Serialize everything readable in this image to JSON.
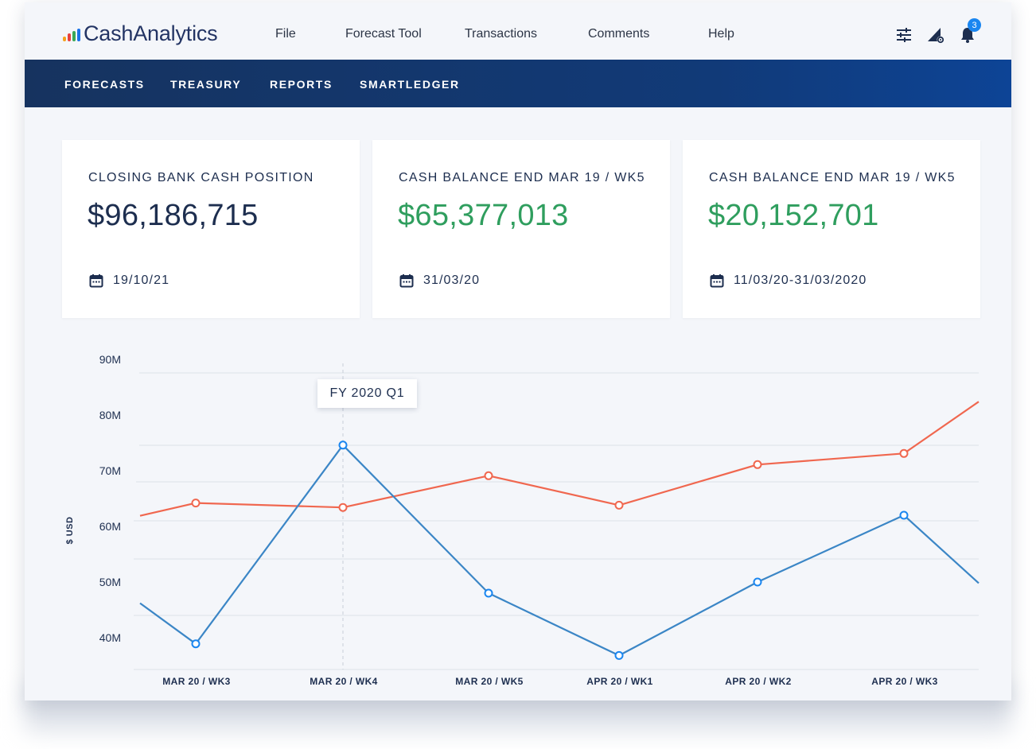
{
  "app": {
    "brand": "CashAnalytics",
    "brand_colors": [
      "#f4a21d",
      "#e8413c",
      "#3aa856",
      "#1a73e8"
    ]
  },
  "nav": {
    "items": [
      {
        "label": "File"
      },
      {
        "label": "Forecast Tool"
      },
      {
        "label": "Transactions"
      },
      {
        "label": "Comments"
      },
      {
        "label": "Help"
      }
    ]
  },
  "toolbar": {
    "icons": [
      "sliders-icon",
      "rule-settings-icon",
      "bell-icon"
    ],
    "notification_count": "3"
  },
  "subnav": {
    "items": [
      {
        "label": "FORECASTS"
      },
      {
        "label": "TREASURY"
      },
      {
        "label": "REPORTS"
      },
      {
        "label": "SMARTLEDGER"
      }
    ]
  },
  "cards": [
    {
      "label": "CLOSING BANK CASH POSITION",
      "value": "$96,186,715",
      "date": "19/10/21",
      "value_color": "#1d2e4f"
    },
    {
      "label": "CASH BALANCE END MAR 19 / WK5",
      "value": "$65,377,013",
      "date": "31/03/20",
      "value_color": "#2f9e5e"
    },
    {
      "label": "CASH BALANCE END MAR 19 / WK5",
      "value": "$20,152,701",
      "date": "11/03/20-31/03/2020",
      "value_color": "#2f9e5e"
    }
  ],
  "chart_data": {
    "type": "line",
    "ylabel": "$ USD",
    "y_ticks": [
      "90M",
      "80M",
      "70M",
      "60M",
      "50M",
      "40M"
    ],
    "categories": [
      "MAR 20 / WK3",
      "MAR 20 / WK4",
      "MAR 20 / WK5",
      "APR 20 / WK1",
      "APR 20 / WK2",
      "APR 20 / WK3"
    ],
    "series": [
      {
        "color": "#f0674f",
        "values": [
          64.2,
          63.4,
          69.1,
          63.8,
          71.1,
          73.1
        ],
        "start": 61.9,
        "end": 82.4
      },
      {
        "color": "#3b86c6",
        "values": [
          38.9,
          74.6,
          48.0,
          36.8,
          50.0,
          62.0
        ],
        "start": 46.2,
        "end": 49.8
      }
    ],
    "tooltip": "FY 2020 Q1"
  }
}
